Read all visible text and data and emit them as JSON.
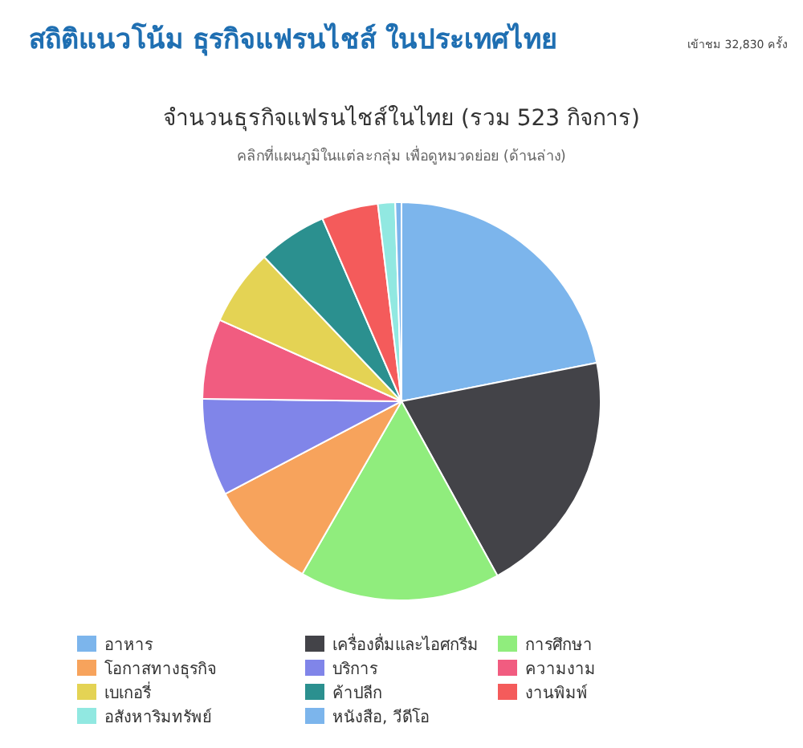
{
  "chart_data": {
    "type": "pie",
    "title": "จำนวนธุรกิจแฟรนไชส์ในไทย (รวม 523 กิจการ)",
    "subtitle": "คลิกที่แผนภูมิในแต่ละกลุ่ม เพื่อดูหมวดย่อย (ด้านล่าง)",
    "annotations": [
      "สถิติแนวโน้ม ธุรกิจแฟรนไชส์ ในประเทศไทย",
      "เข้าชม 32,830 ครั้ง"
    ],
    "categories": [
      "อาหาร",
      "เครื่องดื่มและไอศกรีม",
      "การศึกษา",
      "โอกาสทางธุรกิจ",
      "บริการ",
      "ความงาม",
      "เบเกอรี่",
      "ค้าปลีก",
      "งานพิมพ์",
      "อสังหาริมทรัพย์",
      "หนังสือ, วีดีโอ"
    ],
    "values": [
      21.9,
      20.1,
      16.3,
      9.0,
      7.9,
      6.5,
      6.2,
      5.6,
      4.6,
      1.4,
      0.5
    ],
    "colors": [
      "#7cb5ec",
      "#434348",
      "#90ed7d",
      "#f7a35c",
      "#8085e9",
      "#f15c80",
      "#e4d354",
      "#2b908f",
      "#f45b5b",
      "#91e8e1",
      "#7cb5ec"
    ],
    "legend": "bottom"
  }
}
